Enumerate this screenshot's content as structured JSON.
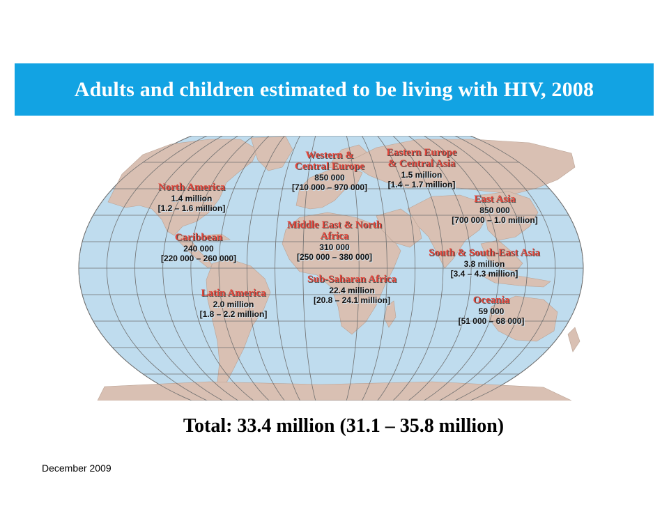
{
  "title": "Adults and children estimated to be living with HIV, 2008",
  "colors": {
    "banner": "#12a3e3",
    "ocean": "#bfdcee",
    "land": "#d9c0b3",
    "grid": "#6f6f6f",
    "region_label": "#e0463b"
  },
  "regions": [
    {
      "id": "north-america",
      "name": "North America",
      "value": "1.4 million",
      "range": "[1.2 – 1.6 million]"
    },
    {
      "id": "caribbean",
      "name": "Caribbean",
      "value": "240 000",
      "range": "[220 000 – 260 000]"
    },
    {
      "id": "latin-america",
      "name": "Latin America",
      "value": "2.0 million",
      "range": "[1.8 – 2.2 million]"
    },
    {
      "id": "western-central-europe",
      "name": "Western &",
      "name2": "Central Europe",
      "value": "850 000",
      "range": "[710 000 – 970 000]"
    },
    {
      "id": "middle-east-north-africa",
      "name": "Middle East & North",
      "name2": "Africa",
      "value": "310 000",
      "range": "[250 000 – 380 000]"
    },
    {
      "id": "sub-saharan-africa",
      "name": "Sub-Saharan Africa",
      "value": "22.4 million",
      "range": "[20.8 – 24.1 million]"
    },
    {
      "id": "eastern-europe-central-asia",
      "name": "Eastern Europe",
      "name2": "& Central Asia",
      "value": "1.5 million",
      "range": "[1.4 – 1.7 million]"
    },
    {
      "id": "east-asia",
      "name": "East Asia",
      "value": "850 000",
      "range": "[700 000 – 1.0 million]"
    },
    {
      "id": "south-southeast-asia",
      "name": "South & South-East Asia",
      "value": "3.8 million",
      "range": "[3.4 – 4.3 million]"
    },
    {
      "id": "oceania",
      "name": "Oceania",
      "value": "59 000",
      "range": "[51 000 – 68 000]"
    }
  ],
  "total": "Total: 33.4 million  (31.1 – 35.8 million)",
  "footer_date": "December 2009"
}
